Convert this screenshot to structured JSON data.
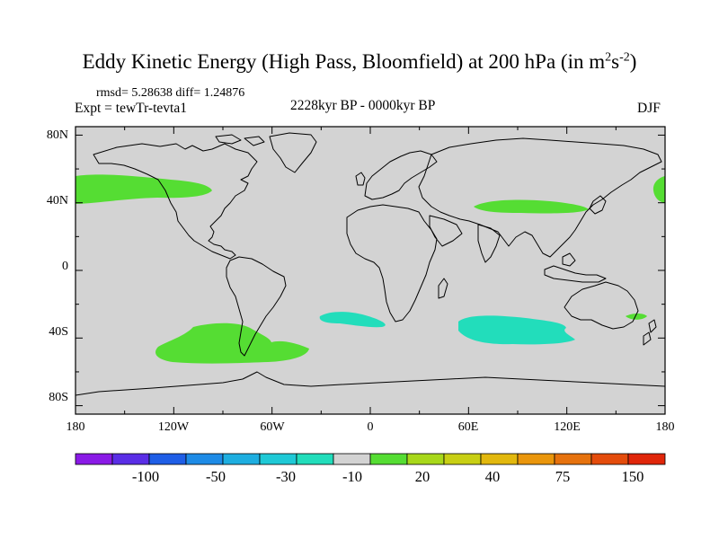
{
  "title": {
    "main": "Eddy Kinetic Energy (High Pass, Bloomfield) at 200 hPa (in m",
    "sup1": "2",
    "mid": "s",
    "sup2": "-2",
    "close": ")"
  },
  "subtitle": {
    "stats": "rmsd= 5.28638 diff= 1.24876",
    "expt": "Expt = tewTr-tevta1",
    "period": "2228kyr BP - 0000kyr BP",
    "season": "DJF"
  },
  "map": {
    "background_color": "#d3d3d3",
    "lat_labels": [
      "80N",
      "40N",
      "0",
      "40S",
      "80S"
    ],
    "lon_labels": [
      "180",
      "120W",
      "60W",
      "0",
      "60E",
      "120E",
      "180"
    ]
  },
  "anomaly_regions": [
    {
      "name": "north-pacific-positive",
      "color": "#55dd33"
    },
    {
      "name": "asia-jet-positive",
      "color": "#55dd33"
    },
    {
      "name": "dateline-positive",
      "color": "#55dd33"
    },
    {
      "name": "south-pacific-positive",
      "color": "#55dd33"
    },
    {
      "name": "south-atlantic-negative",
      "color": "#22ddbb"
    },
    {
      "name": "indian-ocean-negative",
      "color": "#22ddbb"
    },
    {
      "name": "tasman-positive",
      "color": "#55dd33"
    }
  ],
  "colorbar": {
    "colors": [
      "#8a1ae6",
      "#5a2ee6",
      "#1f5ee6",
      "#1e8be6",
      "#1eaee0",
      "#1fc9d6",
      "#22ddbb",
      "#d3d3d3",
      "#55dd33",
      "#a8d81a",
      "#c8cf14",
      "#e2b80e",
      "#ea960c",
      "#e6720e",
      "#e44c0c",
      "#e0260a"
    ],
    "labels": [
      "-100",
      "-50",
      "-30",
      "-10",
      "20",
      "40",
      "75",
      "150"
    ]
  }
}
